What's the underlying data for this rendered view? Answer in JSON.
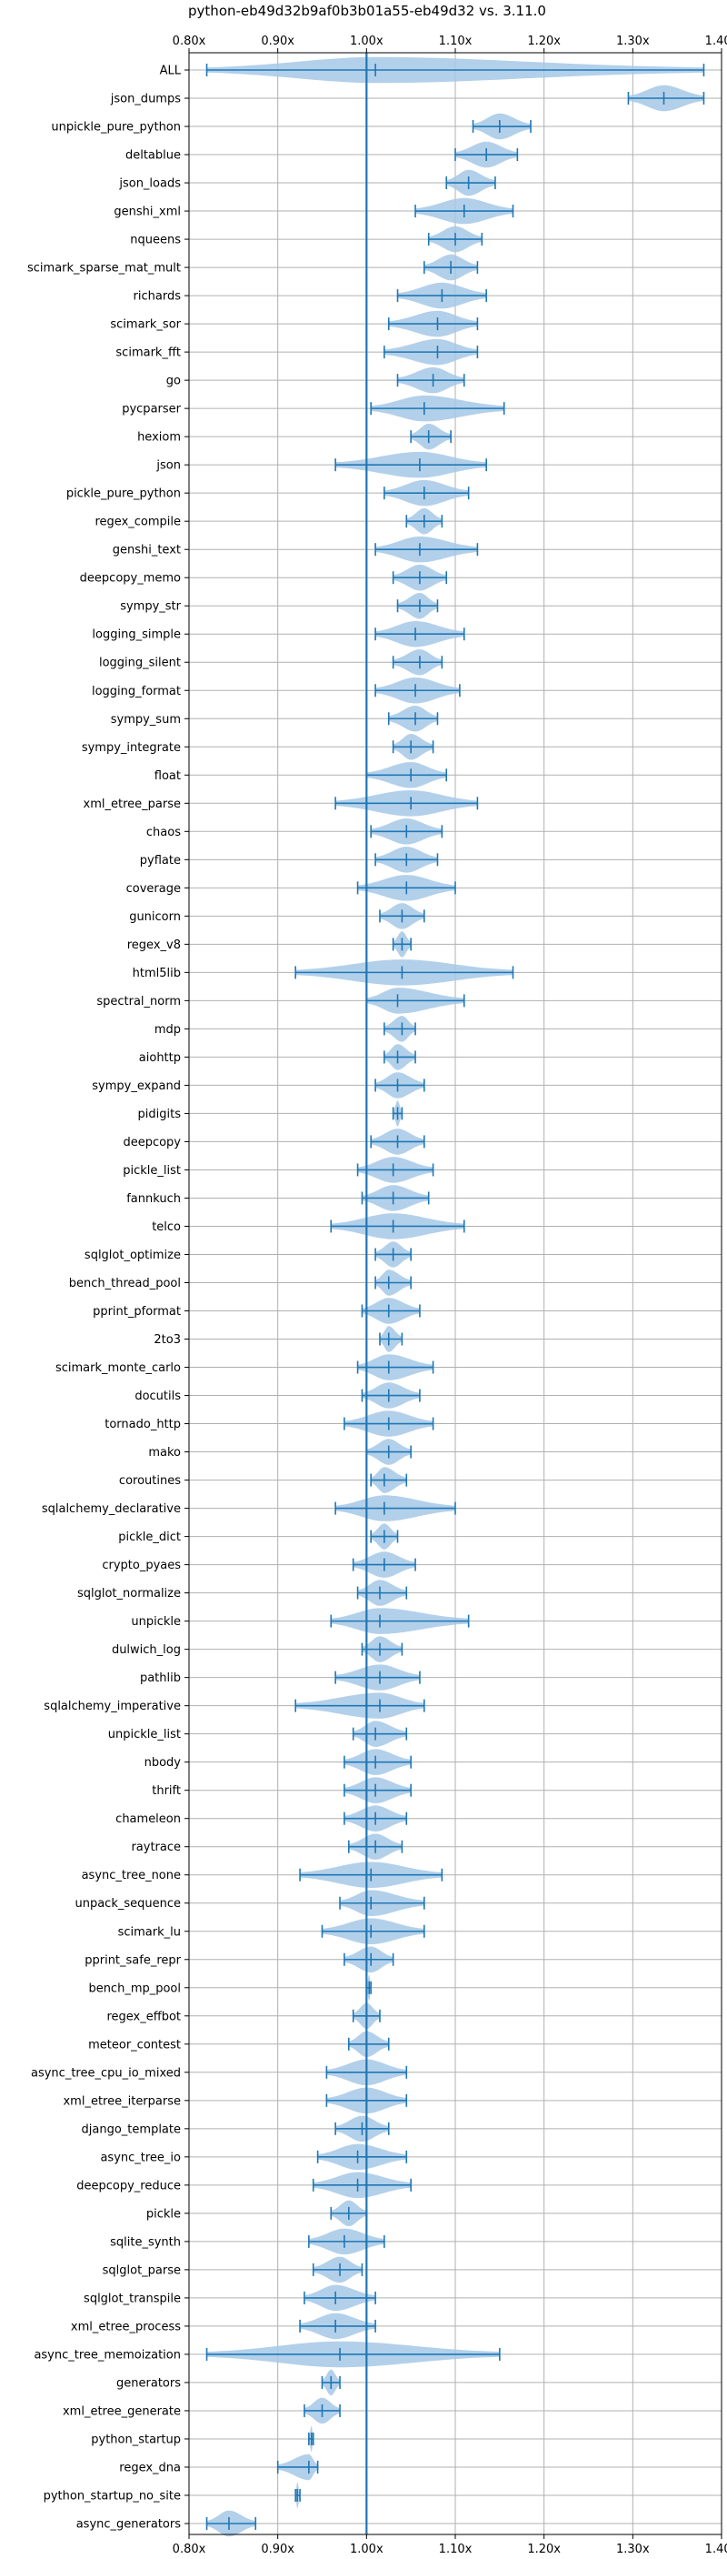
{
  "chart_data": {
    "type": "violin",
    "title": "python-eb49d32b9af0b3b01a55-eb49d32 vs. 3.11.0",
    "xlim": [
      0.8,
      1.4
    ],
    "xticks": [
      0.8,
      0.9,
      1.0,
      1.1,
      1.2,
      1.3,
      1.4
    ],
    "xtick_labels": [
      "0.80x",
      "0.90x",
      "1.00x",
      "1.10x",
      "1.20x",
      "1.30x",
      "1.40x"
    ],
    "reference_line": 1.0,
    "grid": true,
    "colors": {
      "violin_fill": "#a6c8e6",
      "violin_stat": "#1f77b4",
      "ref_line": "#1f77b4",
      "grid": "#b0b0b0",
      "axis": "#000000"
    },
    "series": [
      {
        "name": "ALL",
        "min": 0.82,
        "max": 1.38,
        "median": 1.01
      },
      {
        "name": "json_dumps",
        "min": 1.295,
        "max": 1.38,
        "median": 1.335
      },
      {
        "name": "unpickle_pure_python",
        "min": 1.12,
        "max": 1.185,
        "median": 1.15
      },
      {
        "name": "deltablue",
        "min": 1.1,
        "max": 1.17,
        "median": 1.135
      },
      {
        "name": "json_loads",
        "min": 1.09,
        "max": 1.145,
        "median": 1.115
      },
      {
        "name": "genshi_xml",
        "min": 1.055,
        "max": 1.165,
        "median": 1.11
      },
      {
        "name": "nqueens",
        "min": 1.07,
        "max": 1.13,
        "median": 1.1
      },
      {
        "name": "scimark_sparse_mat_mult",
        "min": 1.065,
        "max": 1.125,
        "median": 1.095
      },
      {
        "name": "richards",
        "min": 1.035,
        "max": 1.135,
        "median": 1.085
      },
      {
        "name": "scimark_sor",
        "min": 1.025,
        "max": 1.125,
        "median": 1.08
      },
      {
        "name": "scimark_fft",
        "min": 1.02,
        "max": 1.125,
        "median": 1.08
      },
      {
        "name": "go",
        "min": 1.035,
        "max": 1.11,
        "median": 1.075
      },
      {
        "name": "pycparser",
        "min": 1.005,
        "max": 1.155,
        "median": 1.065
      },
      {
        "name": "hexiom",
        "min": 1.05,
        "max": 1.095,
        "median": 1.07
      },
      {
        "name": "json",
        "min": 0.965,
        "max": 1.135,
        "median": 1.06
      },
      {
        "name": "pickle_pure_python",
        "min": 1.02,
        "max": 1.115,
        "median": 1.065
      },
      {
        "name": "regex_compile",
        "min": 1.045,
        "max": 1.085,
        "median": 1.065
      },
      {
        "name": "genshi_text",
        "min": 1.01,
        "max": 1.125,
        "median": 1.06
      },
      {
        "name": "deepcopy_memo",
        "min": 1.03,
        "max": 1.09,
        "median": 1.06
      },
      {
        "name": "sympy_str",
        "min": 1.035,
        "max": 1.08,
        "median": 1.06
      },
      {
        "name": "logging_simple",
        "min": 1.01,
        "max": 1.11,
        "median": 1.055
      },
      {
        "name": "logging_silent",
        "min": 1.03,
        "max": 1.085,
        "median": 1.06
      },
      {
        "name": "logging_format",
        "min": 1.01,
        "max": 1.105,
        "median": 1.055
      },
      {
        "name": "sympy_sum",
        "min": 1.025,
        "max": 1.08,
        "median": 1.055
      },
      {
        "name": "sympy_integrate",
        "min": 1.03,
        "max": 1.075,
        "median": 1.05
      },
      {
        "name": "float",
        "min": 1.0,
        "max": 1.09,
        "median": 1.05
      },
      {
        "name": "xml_etree_parse",
        "min": 0.965,
        "max": 1.125,
        "median": 1.05
      },
      {
        "name": "chaos",
        "min": 1.005,
        "max": 1.085,
        "median": 1.045
      },
      {
        "name": "pyflate",
        "min": 1.01,
        "max": 1.08,
        "median": 1.045
      },
      {
        "name": "coverage",
        "min": 0.99,
        "max": 1.1,
        "median": 1.045
      },
      {
        "name": "gunicorn",
        "min": 1.015,
        "max": 1.065,
        "median": 1.04
      },
      {
        "name": "regex_v8",
        "min": 1.03,
        "max": 1.05,
        "median": 1.04
      },
      {
        "name": "html5lib",
        "min": 0.92,
        "max": 1.165,
        "median": 1.04
      },
      {
        "name": "spectral_norm",
        "min": 1.0,
        "max": 1.11,
        "median": 1.035
      },
      {
        "name": "mdp",
        "min": 1.02,
        "max": 1.055,
        "median": 1.04
      },
      {
        "name": "aiohttp",
        "min": 1.02,
        "max": 1.055,
        "median": 1.035
      },
      {
        "name": "sympy_expand",
        "min": 1.01,
        "max": 1.065,
        "median": 1.035
      },
      {
        "name": "pidigits",
        "min": 1.03,
        "max": 1.04,
        "median": 1.035
      },
      {
        "name": "deepcopy",
        "min": 1.005,
        "max": 1.065,
        "median": 1.035
      },
      {
        "name": "pickle_list",
        "min": 0.99,
        "max": 1.075,
        "median": 1.03
      },
      {
        "name": "fannkuch",
        "min": 0.995,
        "max": 1.07,
        "median": 1.03
      },
      {
        "name": "telco",
        "min": 0.96,
        "max": 1.11,
        "median": 1.03
      },
      {
        "name": "sqlglot_optimize",
        "min": 1.01,
        "max": 1.05,
        "median": 1.03
      },
      {
        "name": "bench_thread_pool",
        "min": 1.01,
        "max": 1.05,
        "median": 1.025
      },
      {
        "name": "pprint_pformat",
        "min": 0.995,
        "max": 1.06,
        "median": 1.025
      },
      {
        "name": "2to3",
        "min": 1.015,
        "max": 1.04,
        "median": 1.025
      },
      {
        "name": "scimark_monte_carlo",
        "min": 0.99,
        "max": 1.075,
        "median": 1.025
      },
      {
        "name": "docutils",
        "min": 0.995,
        "max": 1.06,
        "median": 1.025
      },
      {
        "name": "tornado_http",
        "min": 0.975,
        "max": 1.075,
        "median": 1.025
      },
      {
        "name": "mako",
        "min": 1.0,
        "max": 1.05,
        "median": 1.025
      },
      {
        "name": "coroutines",
        "min": 1.005,
        "max": 1.045,
        "median": 1.02
      },
      {
        "name": "sqlalchemy_declarative",
        "min": 0.965,
        "max": 1.1,
        "median": 1.02
      },
      {
        "name": "pickle_dict",
        "min": 1.005,
        "max": 1.035,
        "median": 1.02
      },
      {
        "name": "crypto_pyaes",
        "min": 0.985,
        "max": 1.055,
        "median": 1.02
      },
      {
        "name": "sqlglot_normalize",
        "min": 0.99,
        "max": 1.045,
        "median": 1.015
      },
      {
        "name": "unpickle",
        "min": 0.96,
        "max": 1.115,
        "median": 1.015
      },
      {
        "name": "dulwich_log",
        "min": 0.995,
        "max": 1.04,
        "median": 1.015
      },
      {
        "name": "pathlib",
        "min": 0.965,
        "max": 1.06,
        "median": 1.015
      },
      {
        "name": "sqlalchemy_imperative",
        "min": 0.92,
        "max": 1.065,
        "median": 1.015
      },
      {
        "name": "unpickle_list",
        "min": 0.985,
        "max": 1.045,
        "median": 1.01
      },
      {
        "name": "nbody",
        "min": 0.975,
        "max": 1.05,
        "median": 1.01
      },
      {
        "name": "thrift",
        "min": 0.975,
        "max": 1.05,
        "median": 1.01
      },
      {
        "name": "chameleon",
        "min": 0.975,
        "max": 1.045,
        "median": 1.01
      },
      {
        "name": "raytrace",
        "min": 0.98,
        "max": 1.04,
        "median": 1.01
      },
      {
        "name": "async_tree_none",
        "min": 0.925,
        "max": 1.085,
        "median": 1.005
      },
      {
        "name": "unpack_sequence",
        "min": 0.97,
        "max": 1.065,
        "median": 1.005
      },
      {
        "name": "scimark_lu",
        "min": 0.95,
        "max": 1.065,
        "median": 1.005
      },
      {
        "name": "pprint_safe_repr",
        "min": 0.975,
        "max": 1.03,
        "median": 1.005
      },
      {
        "name": "bench_mp_pool",
        "min": 1.0,
        "max": 1.005,
        "median": 1.003
      },
      {
        "name": "regex_effbot",
        "min": 0.985,
        "max": 1.015,
        "median": 1.0
      },
      {
        "name": "meteor_contest",
        "min": 0.98,
        "max": 1.025,
        "median": 1.0
      },
      {
        "name": "async_tree_cpu_io_mixed",
        "min": 0.955,
        "max": 1.045,
        "median": 1.0
      },
      {
        "name": "xml_etree_iterparse",
        "min": 0.955,
        "max": 1.045,
        "median": 1.0
      },
      {
        "name": "django_template",
        "min": 0.965,
        "max": 1.025,
        "median": 0.995
      },
      {
        "name": "async_tree_io",
        "min": 0.945,
        "max": 1.045,
        "median": 0.99
      },
      {
        "name": "deepcopy_reduce",
        "min": 0.94,
        "max": 1.05,
        "median": 0.99
      },
      {
        "name": "pickle",
        "min": 0.96,
        "max": 1.0,
        "median": 0.98
      },
      {
        "name": "sqlite_synth",
        "min": 0.935,
        "max": 1.02,
        "median": 0.975
      },
      {
        "name": "sqlglot_parse",
        "min": 0.94,
        "max": 0.995,
        "median": 0.97
      },
      {
        "name": "sqlglot_transpile",
        "min": 0.93,
        "max": 1.01,
        "median": 0.965
      },
      {
        "name": "xml_etree_process",
        "min": 0.925,
        "max": 1.01,
        "median": 0.965
      },
      {
        "name": "async_tree_memoization",
        "min": 0.82,
        "max": 1.15,
        "median": 0.97
      },
      {
        "name": "generators",
        "min": 0.95,
        "max": 0.97,
        "median": 0.96
      },
      {
        "name": "xml_etree_generate",
        "min": 0.93,
        "max": 0.97,
        "median": 0.95
      },
      {
        "name": "python_startup",
        "min": 0.935,
        "max": 0.94,
        "median": 0.938
      },
      {
        "name": "regex_dna",
        "min": 0.9,
        "max": 0.945,
        "median": 0.935
      },
      {
        "name": "python_startup_no_site",
        "min": 0.92,
        "max": 0.925,
        "median": 0.922
      },
      {
        "name": "async_generators",
        "min": 0.82,
        "max": 0.875,
        "median": 0.845
      }
    ]
  }
}
